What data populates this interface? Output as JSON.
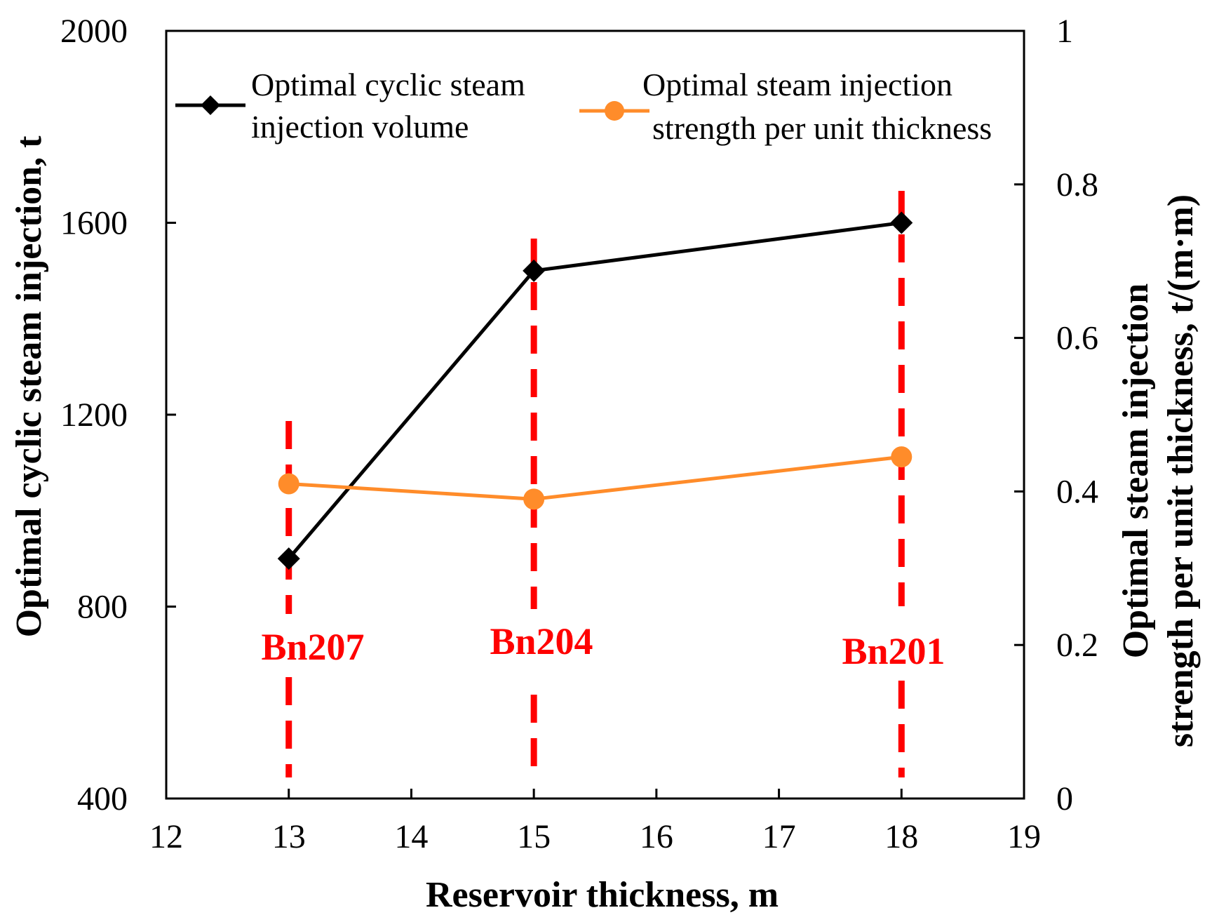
{
  "chart_data": {
    "type": "line",
    "xlabel": "Reservoir thickness, m",
    "ylabel_left": "Optimal cyclic steam injection, t",
    "ylabel_right": [
      "Optimal steam injection",
      "strength per unit thickness, t/(m·m)"
    ],
    "xlim": [
      12,
      19
    ],
    "ylim_left": [
      400,
      2000
    ],
    "ylim_right": [
      0,
      1
    ],
    "x_ticks": [
      "12",
      "13",
      "14",
      "15",
      "16",
      "17",
      "18",
      "19"
    ],
    "y_left_ticks": [
      "400",
      "800",
      "1200",
      "1600",
      "2000"
    ],
    "y_right_ticks": [
      "0",
      "0.2",
      "0.4",
      "0.6",
      "0.8",
      "1"
    ],
    "categories": [
      "13",
      "15",
      "18"
    ],
    "series": [
      {
        "name": "Optimal cyclic steam injection volume",
        "legend_lines": [
          "Optimal cyclic steam",
          "injection volume"
        ],
        "axis": "left",
        "color": "#000000",
        "marker": "diamond",
        "x": [
          13,
          15,
          18
        ],
        "values": [
          900,
          1500,
          1600
        ]
      },
      {
        "name": "Optimal steam injection strength per unit thickness",
        "legend_lines": [
          "Optimal steam injection",
          "strength per unit thickness"
        ],
        "axis": "right",
        "color": "#FF8C2A",
        "marker": "circle",
        "x": [
          13,
          15,
          18
        ],
        "values": [
          0.41,
          0.39,
          0.445
        ]
      }
    ],
    "annotations": [
      {
        "x": 13,
        "label": "Bn207"
      },
      {
        "x": 15,
        "label": "Bn204"
      },
      {
        "x": 18,
        "label": "Bn201"
      }
    ],
    "annotation_color": "#FF0000",
    "legend_position": "top"
  }
}
